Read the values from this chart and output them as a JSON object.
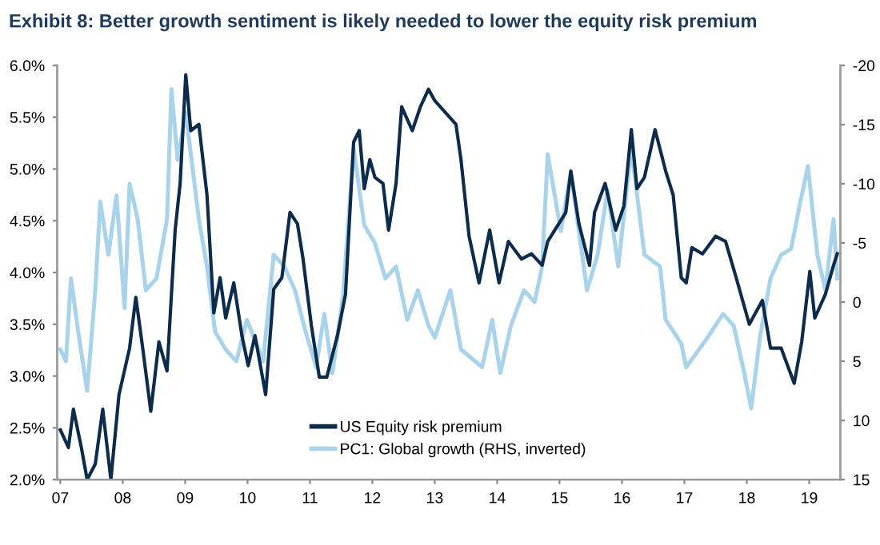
{
  "chart_data": {
    "type": "line",
    "title": "Exhibit 8: Better growth sentiment is likely needed to lower the equity risk premium",
    "xlim": [
      2006.95,
      2019.5
    ],
    "xticks": [
      {
        "value": 2007,
        "label": "07"
      },
      {
        "value": 2008,
        "label": "08"
      },
      {
        "value": 2009,
        "label": "09"
      },
      {
        "value": 2010,
        "label": "10"
      },
      {
        "value": 2011,
        "label": "11"
      },
      {
        "value": 2012,
        "label": "12"
      },
      {
        "value": 2013,
        "label": "13"
      },
      {
        "value": 2014,
        "label": "14"
      },
      {
        "value": 2015,
        "label": "15"
      },
      {
        "value": 2016,
        "label": "16"
      },
      {
        "value": 2017,
        "label": "17"
      },
      {
        "value": 2018,
        "label": "18"
      },
      {
        "value": 2019,
        "label": "19"
      }
    ],
    "ylim": [
      2.0,
      6.0
    ],
    "yticks": [
      {
        "value": 2.0,
        "label": "2.0%"
      },
      {
        "value": 2.5,
        "label": "2.5%"
      },
      {
        "value": 3.0,
        "label": "3.0%"
      },
      {
        "value": 3.5,
        "label": "3.5%"
      },
      {
        "value": 4.0,
        "label": "4.0%"
      },
      {
        "value": 4.5,
        "label": "4.5%"
      },
      {
        "value": 5.0,
        "label": "5.0%"
      },
      {
        "value": 5.5,
        "label": "5.5%"
      },
      {
        "value": 6.0,
        "label": "6.0%"
      }
    ],
    "y2lim": [
      15,
      -20
    ],
    "y2ticks": [
      -20,
      -15,
      -10,
      -5,
      0,
      5,
      10,
      15
    ],
    "legend": "bottom",
    "grid": false,
    "series": [
      {
        "name": "US Equity risk premium",
        "color": "#0d2b4a",
        "x": [
          2007.0,
          2007.13,
          2007.21,
          2007.34,
          2007.43,
          2007.56,
          2007.68,
          2007.81,
          2007.94,
          2008.11,
          2008.21,
          2008.32,
          2008.45,
          2008.58,
          2008.71,
          2008.84,
          2008.92,
          2009.01,
          2009.09,
          2009.22,
          2009.35,
          2009.46,
          2009.56,
          2009.65,
          2009.78,
          2009.91,
          2010.01,
          2010.12,
          2010.29,
          2010.42,
          2010.55,
          2010.68,
          2010.8,
          2010.89,
          2011.02,
          2011.15,
          2011.27,
          2011.44,
          2011.57,
          2011.7,
          2011.79,
          2011.87,
          2011.96,
          2012.04,
          2012.17,
          2012.26,
          2012.38,
          2012.47,
          2012.64,
          2012.77,
          2012.9,
          2013.0,
          2013.34,
          2013.42,
          2013.55,
          2013.71,
          2013.88,
          2014.03,
          2014.18,
          2014.39,
          2014.55,
          2014.72,
          2014.81,
          2015.1,
          2015.18,
          2015.31,
          2015.48,
          2015.56,
          2015.73,
          2015.9,
          2016.03,
          2016.15,
          2016.24,
          2016.36,
          2016.53,
          2016.7,
          2016.82,
          2016.95,
          2017.03,
          2017.12,
          2017.29,
          2017.5,
          2017.66,
          2017.83,
          2018.04,
          2018.25,
          2018.38,
          2018.55,
          2018.76,
          2018.88,
          2019.01,
          2019.09,
          2019.26,
          2019.39,
          2019.45
        ],
        "values": [
          2.48,
          2.31,
          2.68,
          2.3,
          2.0,
          2.15,
          2.68,
          2.0,
          2.82,
          3.27,
          3.76,
          3.27,
          2.66,
          3.33,
          3.05,
          4.41,
          4.86,
          5.91,
          5.37,
          5.43,
          4.75,
          3.61,
          3.95,
          3.56,
          3.9,
          3.39,
          3.1,
          3.39,
          2.82,
          3.84,
          3.95,
          4.58,
          4.47,
          4.13,
          3.5,
          2.99,
          2.99,
          3.39,
          3.79,
          5.26,
          5.37,
          4.81,
          5.09,
          4.92,
          4.86,
          4.41,
          4.86,
          5.6,
          5.37,
          5.6,
          5.77,
          5.66,
          5.43,
          5.09,
          4.35,
          3.9,
          4.41,
          3.9,
          4.3,
          4.13,
          4.18,
          4.07,
          4.3,
          4.58,
          4.98,
          4.47,
          4.07,
          4.58,
          4.86,
          4.41,
          4.64,
          5.38,
          4.81,
          4.92,
          5.38,
          4.98,
          4.75,
          3.95,
          3.9,
          4.24,
          4.18,
          4.35,
          4.3,
          3.95,
          3.5,
          3.73,
          3.27,
          3.27,
          2.93,
          3.33,
          4.01,
          3.56,
          3.79,
          4.07,
          4.18
        ]
      },
      {
        "name": "PC1: Global growth (RHS, inverted)",
        "color": "#a9d3ea",
        "axis": "y2",
        "x": [
          2007.0,
          2007.09,
          2007.17,
          2007.3,
          2007.43,
          2007.56,
          2007.64,
          2007.77,
          2007.9,
          2008.03,
          2008.11,
          2008.24,
          2008.37,
          2008.54,
          2008.71,
          2008.78,
          2008.88,
          2009.01,
          2009.22,
          2009.35,
          2009.48,
          2009.65,
          2009.82,
          2009.99,
          2010.25,
          2010.42,
          2010.59,
          2010.76,
          2010.93,
          2011.1,
          2011.23,
          2011.36,
          2011.53,
          2011.7,
          2011.87,
          2012.04,
          2012.21,
          2012.38,
          2012.56,
          2012.73,
          2012.9,
          2013.0,
          2013.25,
          2013.42,
          2013.76,
          2013.92,
          2014.05,
          2014.22,
          2014.43,
          2014.6,
          2014.72,
          2014.81,
          2015.02,
          2015.18,
          2015.44,
          2015.61,
          2015.77,
          2015.94,
          2016.15,
          2016.36,
          2016.61,
          2016.7,
          2016.95,
          2017.03,
          2017.37,
          2017.62,
          2017.79,
          2017.96,
          2018.07,
          2018.21,
          2018.38,
          2018.55,
          2018.71,
          2018.84,
          2018.98,
          2019.13,
          2019.26,
          2019.39,
          2019.45
        ],
        "values": [
          4,
          5,
          -2,
          3,
          7.5,
          -1,
          -8.5,
          -4,
          -9,
          0.5,
          -10,
          -7,
          -1,
          -2,
          -7,
          -18,
          -12,
          -16,
          -7,
          -3,
          2.5,
          4,
          5,
          1.5,
          5,
          -4,
          -3,
          -1,
          2.5,
          5.5,
          1,
          6,
          -0.5,
          -13,
          -6.5,
          -5,
          -2,
          -3,
          1.5,
          -1,
          2,
          3,
          -1,
          4,
          5.5,
          1.5,
          6,
          2,
          -1,
          0,
          -3,
          -12.5,
          -6,
          -11,
          -1,
          -4,
          -9.5,
          -3,
          -13,
          -4,
          -3,
          1.5,
          3.5,
          5.5,
          3,
          1,
          2,
          6,
          9,
          3,
          -2,
          -4,
          -4.5,
          -8,
          -11.5,
          -4,
          -1,
          -7,
          -2
        ]
      }
    ]
  }
}
